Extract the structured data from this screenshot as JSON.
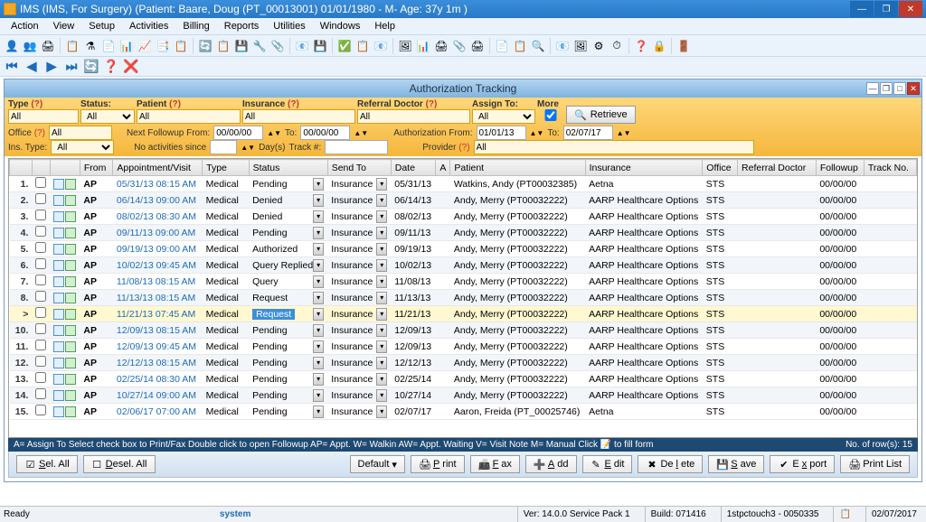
{
  "title": "IMS (IMS, For Surgery)    (Patient: Baare, Doug  (PT_00013001) 01/01/1980 - M- Age: 37y 1m )",
  "menus": [
    "Action",
    "View",
    "Setup",
    "Activities",
    "Billing",
    "Reports",
    "Utilities",
    "Windows",
    "Help"
  ],
  "toolbar_icons": [
    "👤",
    "👥",
    "🖨",
    "|",
    "📋",
    "⚗",
    "📄",
    "📊",
    "📈",
    "📑",
    "📋",
    "|",
    "🔄",
    "📋",
    "💾",
    "🔧",
    "📎",
    "|",
    "📧",
    "💾",
    "|",
    "✅",
    "📋",
    "📧",
    "|",
    "🖼",
    "📊",
    "🖨",
    "📎",
    "🖨",
    "|",
    "📄",
    "📋",
    "🔍",
    "|",
    "📧",
    "🖼",
    "⚙",
    "⏱",
    "|",
    "❓",
    "🔒",
    "|",
    "🚪"
  ],
  "nav_icons": [
    "⏮",
    "◀",
    "▶",
    "⏭",
    "🔄",
    "❓",
    "❌"
  ],
  "panel_title": "Authorization Tracking",
  "filters": {
    "type": {
      "label": "Type",
      "val": "All"
    },
    "status": {
      "label": "Status:",
      "val": "All"
    },
    "patient": {
      "label": "Patient",
      "val": "All"
    },
    "insurance": {
      "label": "Insurance",
      "val": "All"
    },
    "referral": {
      "label": "Referral Doctor",
      "val": "All"
    },
    "assign": {
      "label": "Assign To:",
      "val": "All"
    },
    "more": "More",
    "retrieve": "Retrieve",
    "office": {
      "label": "Office",
      "val": "All"
    },
    "followup_from": {
      "label": "Next Followup From:",
      "from": "00/00/00",
      "to": "00/00/00"
    },
    "auth_from": {
      "label": "Authorization From:",
      "from": "01/01/13",
      "to": "02/07/17"
    },
    "ins_type": {
      "label": "Ins. Type:",
      "val": "All"
    },
    "no_act": {
      "label": "No activities since",
      "days": "Day(s)"
    },
    "track": "Track #:",
    "provider": {
      "label": "Provider",
      "val": "All"
    }
  },
  "columns": [
    "",
    "",
    "",
    "From",
    "Appointment/Visit",
    "Type",
    "Status",
    "Send To",
    "Date",
    "A",
    "Patient",
    "Insurance",
    "Office",
    "Referral Doctor",
    "Followup",
    "Track No."
  ],
  "rows": [
    {
      "n": "1.",
      "from": "AP",
      "appt": "05/31/13 08:15 AM",
      "type": "Medical",
      "status": "Pending",
      "send": "Insurance",
      "date": "05/31/13",
      "pat": "Watkins, Andy   (PT00032385)",
      "ins": "Aetna",
      "off": "STS",
      "fw": "00/00/00"
    },
    {
      "n": "2.",
      "from": "AP",
      "appt": "06/14/13 09:00 AM",
      "type": "Medical",
      "status": "Denied",
      "send": "Insurance",
      "date": "06/14/13",
      "pat": "Andy, Merry   (PT00032222)",
      "ins": "AARP Healthcare Options",
      "off": "STS",
      "fw": "00/00/00"
    },
    {
      "n": "3.",
      "from": "AP",
      "appt": "08/02/13 08:30 AM",
      "type": "Medical",
      "status": "Denied",
      "send": "Insurance",
      "date": "08/02/13",
      "pat": "Andy, Merry   (PT00032222)",
      "ins": "AARP Healthcare Options",
      "off": "STS",
      "fw": "00/00/00"
    },
    {
      "n": "4.",
      "from": "AP",
      "appt": "09/11/13 09:00 AM",
      "type": "Medical",
      "status": "Pending",
      "send": "Insurance",
      "date": "09/11/13",
      "pat": "Andy, Merry   (PT00032222)",
      "ins": "AARP Healthcare Options",
      "off": "STS",
      "fw": "00/00/00"
    },
    {
      "n": "5.",
      "from": "AP",
      "appt": "09/19/13 09:00 AM",
      "type": "Medical",
      "status": "Authorized",
      "send": "Insurance",
      "date": "09/19/13",
      "pat": "Andy, Merry   (PT00032222)",
      "ins": "AARP Healthcare Options",
      "off": "STS",
      "fw": "00/00/00"
    },
    {
      "n": "6.",
      "from": "AP",
      "appt": "10/02/13 09:45 AM",
      "type": "Medical",
      "status": "Query Replied",
      "send": "Insurance",
      "date": "10/02/13",
      "pat": "Andy, Merry   (PT00032222)",
      "ins": "AARP Healthcare Options",
      "off": "STS",
      "fw": "00/00/00"
    },
    {
      "n": "7.",
      "from": "AP",
      "appt": "11/08/13 08:15 AM",
      "type": "Medical",
      "status": "Query",
      "send": "Insurance",
      "date": "11/08/13",
      "pat": "Andy, Merry   (PT00032222)",
      "ins": "AARP Healthcare Options",
      "off": "STS",
      "fw": "00/00/00"
    },
    {
      "n": "8.",
      "from": "AP",
      "appt": "11/13/13 08:15 AM",
      "type": "Medical",
      "status": "Request",
      "send": "Insurance",
      "date": "11/13/13",
      "pat": "Andy, Merry   (PT00032222)",
      "ins": "AARP Healthcare Options",
      "off": "STS",
      "fw": "00/00/00"
    },
    {
      "n": ">",
      "from": "AP",
      "appt": "11/21/13 07:45 AM",
      "type": "Medical",
      "status": "Request",
      "send": "Insurance",
      "date": "11/21/13",
      "pat": "Andy, Merry   (PT00032222)",
      "ins": "AARP Healthcare Options",
      "off": "STS",
      "fw": "00/00/00",
      "cur": true
    },
    {
      "n": "10.",
      "from": "AP",
      "appt": "12/09/13 08:15 AM",
      "type": "Medical",
      "status": "Pending",
      "send": "Insurance",
      "date": "12/09/13",
      "pat": "Andy, Merry   (PT00032222)",
      "ins": "AARP Healthcare Options",
      "off": "STS",
      "fw": "00/00/00"
    },
    {
      "n": "11.",
      "from": "AP",
      "appt": "12/09/13 09:45 AM",
      "type": "Medical",
      "status": "Pending",
      "send": "Insurance",
      "date": "12/09/13",
      "pat": "Andy, Merry   (PT00032222)",
      "ins": "AARP Healthcare Options",
      "off": "STS",
      "fw": "00/00/00"
    },
    {
      "n": "12.",
      "from": "AP",
      "appt": "12/12/13 08:15 AM",
      "type": "Medical",
      "status": "Pending",
      "send": "Insurance",
      "date": "12/12/13",
      "pat": "Andy, Merry   (PT00032222)",
      "ins": "AARP Healthcare Options",
      "off": "STS",
      "fw": "00/00/00"
    },
    {
      "n": "13.",
      "from": "AP",
      "appt": "02/25/14 08:30 AM",
      "type": "Medical",
      "status": "Pending",
      "send": "Insurance",
      "date": "02/25/14",
      "pat": "Andy, Merry   (PT00032222)",
      "ins": "AARP Healthcare Options",
      "off": "STS",
      "fw": "00/00/00"
    },
    {
      "n": "14.",
      "from": "AP",
      "appt": "10/27/14 09:00 AM",
      "type": "Medical",
      "status": "Pending",
      "send": "Insurance",
      "date": "10/27/14",
      "pat": "Andy, Merry   (PT00032222)",
      "ins": "AARP Healthcare Options",
      "off": "STS",
      "fw": "00/00/00"
    },
    {
      "n": "15.",
      "from": "AP",
      "appt": "02/06/17 07:00 AM",
      "type": "Medical",
      "status": "Pending",
      "send": "Insurance",
      "date": "02/07/17",
      "pat": "Aaron, Freida   (PT_00025746)",
      "ins": "Aetna",
      "off": "STS",
      "fw": "00/00/00"
    }
  ],
  "legend": "A= Assign To      Select check box to Print/Fax      Double click to open Followup      AP= Appt. W= Walkin  AW= Appt. Waiting  V= Visit Note  M= Manual     Click 📝 to fill form",
  "row_count": "No. of row(s):  15",
  "buttons": {
    "selall": "Sel. All",
    "deselall": "Desel. All",
    "default": "Default",
    "print": "Print",
    "fax": "Fax",
    "add": "Add",
    "edit": "Edit",
    "delete": "Delete",
    "save": "Save",
    "export": "Export",
    "printlist": "Print List"
  },
  "statusbar": {
    "ready": "Ready",
    "system": "system",
    "ver": "Ver: 14.0.0 Service Pack 1",
    "build": "Build: 071416",
    "conn": "1stpctouch3 - 0050335",
    "date": "02/07/2017"
  }
}
